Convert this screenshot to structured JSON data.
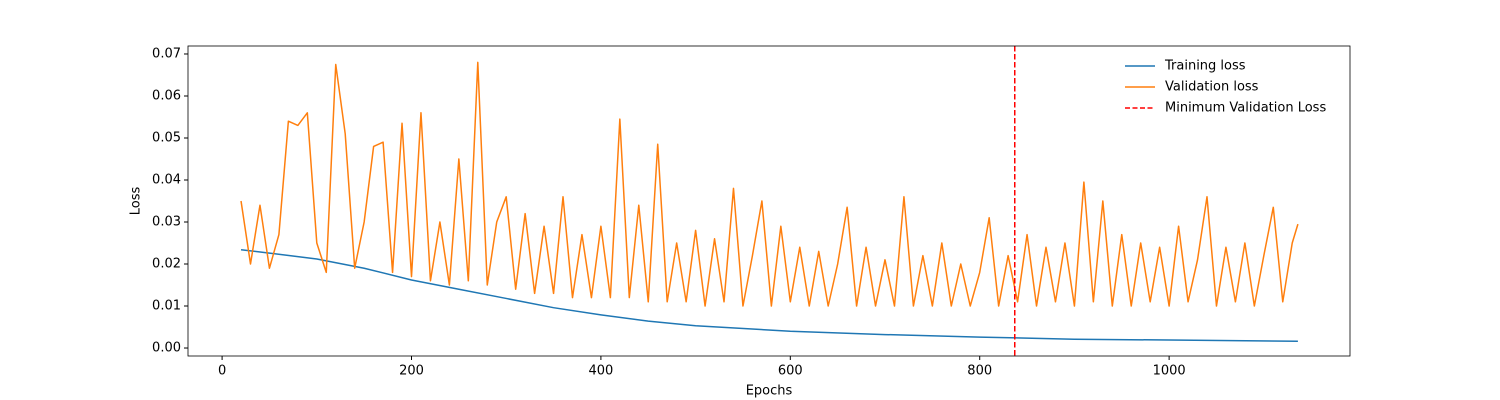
{
  "chart_data": {
    "type": "line",
    "xlabel": "Epochs",
    "ylabel": "Loss",
    "xlim": [
      -36,
      1191
    ],
    "ylim": [
      -0.0019,
      0.0719
    ],
    "xticks": [
      0,
      200,
      400,
      600,
      800,
      1000
    ],
    "yticks": [
      {
        "value": 0,
        "label": "0.00"
      },
      0.01,
      0.02,
      0.03,
      0.04,
      0.05,
      0.06,
      0.07
    ],
    "legend": "upper right",
    "series": [
      {
        "name": "Training loss",
        "color": "#1f77b4",
        "x": [
          20,
          50,
          100,
          150,
          200,
          250,
          300,
          350,
          400,
          450,
          500,
          600,
          700,
          800,
          900,
          1000,
          1136
        ],
        "values": [
          0.0234,
          0.0226,
          0.0212,
          0.019,
          0.0162,
          0.014,
          0.0118,
          0.0096,
          0.0079,
          0.0064,
          0.0053,
          0.004,
          0.0032,
          0.0026,
          0.0021,
          0.0019,
          0.0016
        ]
      },
      {
        "name": "Validation loss",
        "color": "#ff7f0e",
        "x": [
          20,
          30,
          40,
          50,
          60,
          70,
          80,
          90,
          100,
          110,
          120,
          130,
          140,
          150,
          160,
          170,
          180,
          190,
          200,
          210,
          220,
          230,
          240,
          250,
          260,
          270,
          280,
          290,
          300,
          310,
          320,
          330,
          340,
          350,
          360,
          370,
          380,
          390,
          400,
          410,
          420,
          430,
          440,
          450,
          460,
          470,
          480,
          490,
          500,
          510,
          520,
          530,
          540,
          550,
          560,
          570,
          580,
          590,
          600,
          610,
          620,
          630,
          640,
          650,
          660,
          670,
          680,
          690,
          700,
          710,
          720,
          730,
          740,
          750,
          760,
          770,
          780,
          790,
          800,
          810,
          820,
          830,
          840,
          850,
          860,
          870,
          880,
          890,
          900,
          910,
          920,
          930,
          940,
          950,
          960,
          970,
          980,
          990,
          1000,
          1010,
          1020,
          1030,
          1040,
          1050,
          1060,
          1070,
          1080,
          1090,
          1100,
          1110,
          1120,
          1130,
          1136
        ],
        "values": [
          0.035,
          0.02,
          0.034,
          0.019,
          0.027,
          0.054,
          0.053,
          0.056,
          0.025,
          0.018,
          0.0675,
          0.051,
          0.019,
          0.03,
          0.048,
          0.049,
          0.018,
          0.0535,
          0.017,
          0.056,
          0.016,
          0.03,
          0.015,
          0.045,
          0.016,
          0.068,
          0.015,
          0.03,
          0.036,
          0.014,
          0.032,
          0.013,
          0.029,
          0.013,
          0.036,
          0.012,
          0.027,
          0.012,
          0.029,
          0.012,
          0.0545,
          0.012,
          0.034,
          0.011,
          0.0485,
          0.011,
          0.025,
          0.011,
          0.028,
          0.01,
          0.026,
          0.011,
          0.038,
          0.01,
          0.022,
          0.035,
          0.01,
          0.029,
          0.011,
          0.024,
          0.01,
          0.023,
          0.01,
          0.02,
          0.0335,
          0.01,
          0.024,
          0.01,
          0.021,
          0.01,
          0.036,
          0.01,
          0.022,
          0.01,
          0.025,
          0.01,
          0.02,
          0.01,
          0.018,
          0.031,
          0.01,
          0.022,
          0.011,
          0.027,
          0.01,
          0.024,
          0.011,
          0.025,
          0.01,
          0.0395,
          0.011,
          0.035,
          0.01,
          0.027,
          0.01,
          0.025,
          0.011,
          0.024,
          0.01,
          0.029,
          0.011,
          0.021,
          0.036,
          0.01,
          0.024,
          0.011,
          0.025,
          0.01,
          0.022,
          0.0335,
          0.011,
          0.025,
          0.0295
        ]
      }
    ],
    "vline": {
      "x": 837,
      "name": "Minimum Validation Loss",
      "color": "#ff0000"
    }
  }
}
